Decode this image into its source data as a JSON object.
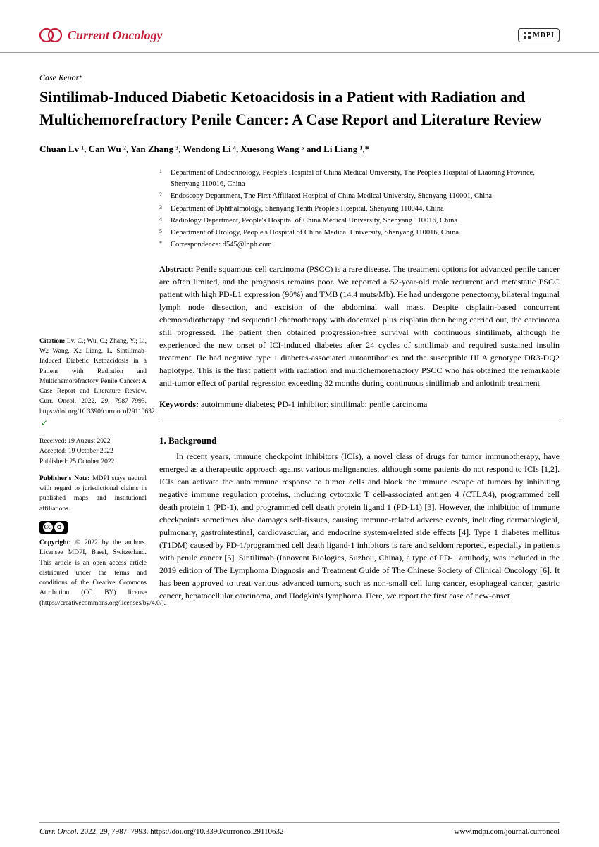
{
  "header": {
    "journal_name": "Current Oncology",
    "publisher": "MDPI"
  },
  "article": {
    "type": "Case Report",
    "title": "Sintilimab-Induced Diabetic Ketoacidosis in a Patient with Radiation and Multichemorefractory Penile Cancer: A Case Report and Literature Review",
    "authors_html": "Chuan Lv ¹, Can Wu ², Yan Zhang ³, Wendong Li ⁴, Xuesong Wang ⁵ and Li Liang ¹,*"
  },
  "affiliations": [
    {
      "num": "1",
      "text": "Department of Endocrinology, People's Hospital of China Medical University, The People's Hospital of Liaoning Province, Shenyang 110016, China"
    },
    {
      "num": "2",
      "text": "Endoscopy Department, The First Affiliated Hospital of China Medical University, Shenyang 110001, China"
    },
    {
      "num": "3",
      "text": "Department of Ophthalmology, Shenyang Tenth People's Hospital, Shenyang 110044, China"
    },
    {
      "num": "4",
      "text": "Radiology Department, People's Hospital of China Medical University, Shenyang 110016, China"
    },
    {
      "num": "5",
      "text": "Department of Urology, People's Hospital of China Medical University, Shenyang 110016, China"
    },
    {
      "num": "*",
      "text": "Correspondence: d545@lnph.com"
    }
  ],
  "abstract": {
    "label": "Abstract:",
    "text": "Penile squamous cell carcinoma (PSCC) is a rare disease. The treatment options for advanced penile cancer are often limited, and the prognosis remains poor. We reported a 52-year-old male recurrent and metastatic PSCC patient with high PD-L1 expression (90%) and TMB (14.4 muts/Mb). He had undergone penectomy, bilateral inguinal lymph node dissection, and excision of the abdominal wall mass. Despite cisplatin-based concurrent chemoradiotherapy and sequential chemotherapy with docetaxel plus cisplatin then being carried out, the carcinoma still progressed. The patient then obtained progression-free survival with continuous sintilimab, although he experienced the new onset of ICI-induced diabetes after 24 cycles of sintilimab and required sustained insulin treatment. He had negative type 1 diabetes-associated autoantibodies and the susceptible HLA genotype DR3-DQ2 haplotype. This is the first patient with radiation and multichemorefractory PSCC who has obtained the remarkable anti-tumor effect of partial regression exceeding 32 months during continuous sintilimab and anlotinib treatment."
  },
  "keywords": {
    "label": "Keywords:",
    "text": "autoimmune diabetes; PD-1 inhibitor; sintilimab; penile carcinoma"
  },
  "section1": {
    "heading": "1. Background",
    "body": "In recent years, immune checkpoint inhibitors (ICIs), a novel class of drugs for tumor immunotherapy, have emerged as a therapeutic approach against various malignancies, although some patients do not respond to ICIs [1,2]. ICIs can activate the autoimmune response to tumor cells and block the immune escape of tumors by inhibiting negative immune regulation proteins, including cytotoxic T cell-associated antigen 4 (CTLA4), programmed cell death protein 1 (PD-1), and programmed cell death protein ligand 1 (PD-L1) [3]. However, the inhibition of immune checkpoints sometimes also damages self-tissues, causing immune-related adverse events, including dermatological, pulmonary, gastrointestinal, cardiovascular, and endocrine system-related side effects [4]. Type 1 diabetes mellitus (T1DM) caused by PD-1/programmed cell death ligand-1 inhibitors is rare and seldom reported, especially in patients with penile cancer [5]. Sintilimab (Innovent Biologics, Suzhou, China), a type of PD-1 antibody, was included in the 2019 edition of The Lymphoma Diagnosis and Treatment Guide of The Chinese Society of Clinical Oncology [6]. It has been approved to treat various advanced tumors, such as non-small cell lung cancer, esophageal cancer, gastric cancer, hepatocellular carcinoma, and Hodgkin's lymphoma. Here, we report the first case of new-onset"
  },
  "sidebar": {
    "citation_label": "Citation:",
    "citation_text": "Lv, C.; Wu, C.; Zhang, Y.; Li, W.; Wang, X.; Liang, L. Sintilimab-Induced Diabetic Ketoacidosis in a Patient with Radiation and Multichemorefractory Penile Cancer: A Case Report and Literature Review. Curr. Oncol. 2022, 29, 7987–7993. https://doi.org/10.3390/curroncol29110632",
    "received": "Received: 19 August 2022",
    "accepted": "Accepted: 19 October 2022",
    "published": "Published: 25 October 2022",
    "pubnote_label": "Publisher's Note:",
    "pubnote_text": "MDPI stays neutral with regard to jurisdictional claims in published maps and institutional affiliations.",
    "copyright_label": "Copyright:",
    "copyright_text": "© 2022 by the authors. Licensee MDPI, Basel, Switzerland. This article is an open access article distributed under the terms and conditions of the Creative Commons Attribution (CC BY) license (https://creativecommons.org/licenses/by/4.0/)."
  },
  "footer": {
    "left_italic": "Curr. Oncol.",
    "left_rest": " 2022, 29, 7987–7993. https://doi.org/10.3390/curroncol29110632",
    "right": "www.mdpi.com/journal/curroncol"
  },
  "colors": {
    "journal_red": "#c41e3a",
    "text": "#000000",
    "rule": "#999999"
  }
}
